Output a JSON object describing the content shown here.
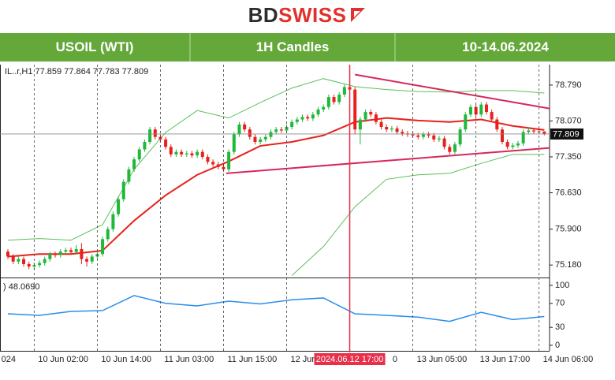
{
  "header": {
    "logo_dark": "BD",
    "logo_red": "SWISS",
    "cells": [
      "USOIL (WTI)",
      "1H Candles",
      "10-14.06.2024"
    ]
  },
  "chart_data": {
    "type": "candlestick",
    "info_text": "IL..r,H1 77.859 77.864 77.783 77.809",
    "up_color": "#1fb83a",
    "down_color": "#e8201c",
    "open": [
      75.45,
      75.35,
      75.25,
      75.3,
      75.2,
      75.15,
      75.18,
      75.22,
      75.3,
      75.4,
      75.38,
      75.45,
      75.48,
      75.44,
      75.5,
      75.3,
      75.25,
      75.35,
      75.4,
      75.7,
      75.9,
      76.2,
      76.5,
      76.85,
      77.1,
      77.3,
      77.5,
      77.65,
      77.9,
      77.75,
      77.7,
      77.55,
      77.4,
      77.45,
      77.4,
      77.42,
      77.38,
      77.45,
      77.35,
      77.25,
      77.2,
      77.15,
      77.1,
      77.45,
      77.8,
      78.0,
      77.9,
      77.75,
      77.65,
      77.7,
      77.75,
      77.85,
      77.9,
      77.88,
      77.95,
      78.05,
      78.1,
      78.15,
      78.12,
      78.2,
      78.3,
      78.35,
      78.55,
      78.45,
      78.6,
      78.75,
      78.7,
      77.9,
      78.1,
      78.25,
      78.2,
      78.05,
      77.95,
      77.9,
      77.92,
      77.85,
      77.82,
      77.8,
      77.78,
      77.75,
      77.8,
      77.78,
      77.7,
      77.72,
      77.55,
      77.45,
      77.6,
      77.9,
      78.2,
      78.35,
      78.2,
      78.4,
      78.25,
      78.1,
      77.9,
      77.65,
      77.55,
      77.58,
      77.62,
      77.85,
      77.88,
      77.86,
      77.859
    ],
    "high": [
      75.5,
      75.4,
      75.35,
      75.35,
      75.25,
      75.23,
      75.27,
      75.35,
      75.45,
      75.45,
      75.5,
      75.53,
      75.53,
      75.58,
      75.62,
      75.35,
      75.4,
      75.45,
      75.75,
      75.95,
      76.25,
      76.55,
      76.9,
      77.15,
      77.35,
      77.55,
      77.7,
      77.95,
      77.95,
      77.8,
      77.75,
      77.6,
      77.5,
      77.5,
      77.47,
      77.47,
      77.5,
      77.5,
      77.4,
      77.3,
      77.25,
      77.2,
      77.5,
      77.85,
      78.05,
      78.05,
      77.95,
      77.8,
      77.75,
      77.8,
      77.9,
      77.95,
      77.95,
      78.0,
      78.1,
      78.15,
      78.2,
      78.2,
      78.25,
      78.35,
      78.4,
      78.6,
      78.6,
      78.65,
      78.8,
      79.0,
      78.75,
      78.15,
      78.3,
      78.3,
      78.25,
      78.1,
      78.0,
      77.97,
      77.97,
      77.9,
      77.87,
      77.85,
      77.83,
      77.85,
      77.85,
      77.83,
      77.77,
      77.77,
      77.6,
      77.65,
      77.95,
      78.25,
      78.4,
      78.4,
      78.45,
      78.45,
      78.3,
      78.15,
      77.95,
      77.7,
      77.63,
      77.67,
      77.9,
      77.93,
      77.93,
      77.91,
      77.864
    ],
    "low": [
      75.3,
      75.2,
      75.2,
      75.15,
      75.1,
      75.1,
      75.13,
      75.17,
      75.25,
      75.33,
      75.33,
      75.4,
      75.39,
      75.39,
      75.2,
      75.15,
      75.2,
      75.3,
      75.35,
      75.65,
      75.85,
      76.15,
      76.45,
      76.8,
      77.05,
      77.25,
      77.45,
      77.6,
      77.7,
      77.65,
      77.5,
      77.35,
      77.35,
      77.35,
      77.35,
      77.33,
      77.33,
      77.3,
      77.2,
      77.15,
      77.1,
      77.05,
      77.05,
      77.4,
      77.75,
      77.85,
      77.7,
      77.6,
      77.6,
      77.65,
      77.7,
      77.8,
      77.83,
      77.83,
      77.9,
      78.0,
      78.05,
      78.07,
      78.07,
      78.15,
      78.25,
      78.3,
      78.4,
      78.4,
      78.55,
      78.65,
      77.8,
      77.6,
      78.05,
      78.15,
      78.0,
      77.9,
      77.85,
      77.85,
      77.8,
      77.77,
      77.75,
      77.73,
      77.7,
      77.7,
      77.73,
      77.65,
      77.65,
      77.5,
      77.4,
      77.4,
      77.55,
      77.85,
      78.15,
      78.15,
      78.15,
      78.2,
      78.05,
      77.85,
      77.6,
      77.5,
      77.5,
      77.53,
      77.57,
      77.8,
      77.81,
      77.81,
      77.783
    ],
    "close": [
      75.35,
      75.25,
      75.3,
      75.2,
      75.15,
      75.18,
      75.22,
      75.3,
      75.4,
      75.38,
      75.45,
      75.48,
      75.44,
      75.5,
      75.3,
      75.25,
      75.35,
      75.4,
      75.7,
      75.9,
      76.2,
      76.5,
      76.85,
      77.1,
      77.3,
      77.5,
      77.65,
      77.9,
      77.75,
      77.7,
      77.55,
      77.4,
      77.45,
      77.4,
      77.42,
      77.38,
      77.45,
      77.35,
      77.25,
      77.2,
      77.15,
      77.1,
      77.45,
      77.8,
      78.0,
      77.9,
      77.75,
      77.65,
      77.7,
      77.75,
      77.85,
      77.9,
      77.88,
      77.95,
      78.05,
      78.1,
      78.15,
      78.12,
      78.2,
      78.3,
      78.35,
      78.55,
      78.45,
      78.6,
      78.75,
      78.7,
      77.9,
      78.1,
      78.25,
      78.2,
      78.05,
      77.95,
      77.9,
      77.92,
      77.85,
      77.82,
      77.8,
      77.78,
      77.75,
      77.8,
      77.78,
      77.7,
      77.72,
      77.55,
      77.45,
      77.6,
      77.9,
      78.2,
      78.35,
      78.2,
      78.4,
      78.25,
      78.1,
      77.9,
      77.65,
      77.55,
      77.58,
      77.62,
      77.85,
      77.88,
      77.86,
      77.859,
      77.809
    ],
    "xlim": [
      -1.5,
      103
    ],
    "ylim": [
      74.93,
      79.2
    ],
    "yticks": [
      {
        "value": 75.18,
        "label": "75.180"
      },
      {
        "value": 75.9,
        "label": "75.900"
      },
      {
        "value": 76.63,
        "label": "76.630"
      },
      {
        "value": 77.35,
        "label": "77.350"
      },
      {
        "value": 78.07,
        "label": "78.070"
      },
      {
        "value": 78.79,
        "label": "78.790"
      }
    ],
    "xticks": [
      {
        "value": -2,
        "label": "024"
      },
      {
        "value": 5,
        "label": "10 Jun 02:00"
      },
      {
        "value": 17,
        "label": "10 Jun 14:00"
      },
      {
        "value": 29,
        "label": "11 Jun 03:00"
      },
      {
        "value": 41,
        "label": "11 Jun 15:00"
      },
      {
        "value": 53,
        "label": "12 Jun 0"
      },
      {
        "value": 72.4,
        "label": "0"
      },
      {
        "value": 77,
        "label": "13 Jun 05:00"
      },
      {
        "value": 89,
        "label": "13 Jun 17:00"
      },
      {
        "value": 101,
        "label": "14 Jun 06:00"
      }
    ],
    "xgrid": [
      5,
      17,
      29,
      41,
      53,
      77,
      89,
      101
    ],
    "current_price": 77.809,
    "cursor": {
      "value": 65,
      "label": "2024.06.12 17:00",
      "color": "#e8304a"
    },
    "indicator_x": [
      0,
      6,
      12,
      18,
      24,
      30,
      36,
      42,
      48,
      54,
      60,
      66,
      72,
      78,
      84,
      90,
      96,
      102
    ],
    "lines": [
      {
        "color": "#e8201c",
        "width": 2,
        "values": [
          75.35,
          75.4,
          75.4,
          75.47,
          76.07,
          76.58,
          76.99,
          77.26,
          77.57,
          77.65,
          77.78,
          78.05,
          78.13,
          78.08,
          78.05,
          78.1,
          77.97,
          77.89
        ]
      },
      {
        "color": "#5cbf5c",
        "width": 1,
        "values": [
          75.68,
          75.71,
          75.68,
          75.99,
          77.1,
          77.84,
          78.28,
          78.13,
          78.44,
          78.73,
          78.92,
          78.76,
          78.7,
          78.66,
          78.65,
          78.68,
          78.68,
          78.63
        ]
      },
      {
        "color": "#5cbf5c",
        "width": 1,
        "values": [
          null,
          null,
          null,
          null,
          null,
          null,
          null,
          null,
          null,
          74.97,
          75.55,
          76.35,
          76.9,
          76.99,
          77.02,
          77.22,
          77.4,
          77.4
        ]
      }
    ],
    "trendline_color": "#d6285a",
    "trendlines": [
      {
        "x": [
          66,
          103
        ],
        "y": [
          79.0,
          78.32
        ]
      },
      {
        "x": [
          41.5,
          103
        ],
        "y": [
          77.02,
          77.53
        ]
      }
    ],
    "rsi": {
      "label": ") 48.0690",
      "color": "#2a8ee8",
      "ylim": [
        -9.2,
        110.5
      ],
      "yticks": [
        0,
        30,
        70,
        100
      ],
      "values": [
        52.6,
        50.0,
        56.6,
        58.0,
        83,
        70,
        65.8,
        73.7,
        69,
        76,
        79,
        52.6,
        50,
        47,
        40,
        55,
        43,
        48.069
      ]
    }
  }
}
